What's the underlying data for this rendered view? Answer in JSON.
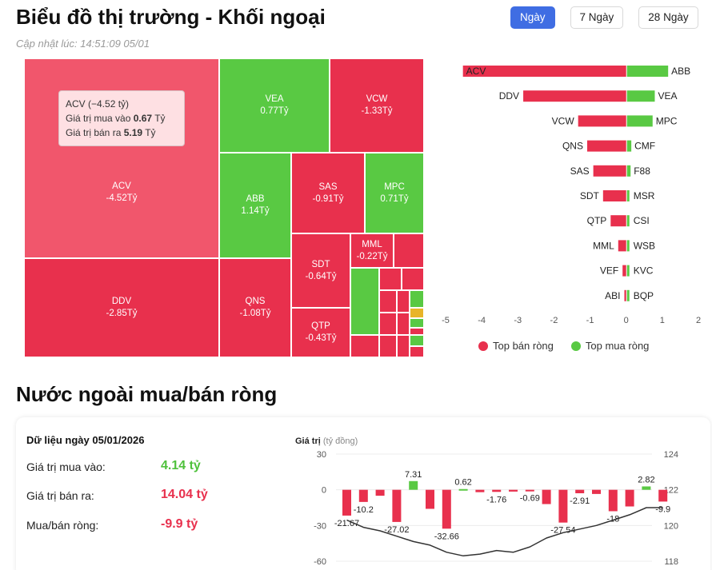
{
  "header": {
    "title": "Biểu đồ thị trường - Khối ngoại",
    "updated": "Cập nhật lúc: 14:51:09 05/01",
    "tabs": [
      "Ngày",
      "7 Ngày",
      "28 Ngày"
    ],
    "active_tab": "Ngày"
  },
  "treemap": {
    "tiles": [
      {
        "code": "ACV",
        "value": "-4.52Tỷ"
      },
      {
        "code": "DDV",
        "value": "-2.85Tỷ"
      },
      {
        "code": "VEA",
        "value": "0.77Tỷ"
      },
      {
        "code": "VCW",
        "value": "-1.33Tỷ"
      },
      {
        "code": "ABB",
        "value": "1.14Tỷ"
      },
      {
        "code": "SAS",
        "value": "-0.91Tỷ"
      },
      {
        "code": "MPC",
        "value": "0.71Tỷ"
      },
      {
        "code": "QNS",
        "value": "-1.08Tỷ"
      },
      {
        "code": "SDT",
        "value": "-0.64Tỷ"
      },
      {
        "code": "MML",
        "value": "-0.22Tỷ"
      },
      {
        "code": "QTP",
        "value": "-0.43Tỷ"
      }
    ],
    "tooltip": {
      "title": "ACV (−4.52 tỷ)",
      "buy_label": "Giá trị mua vào",
      "buy_value": "0.67",
      "buy_unit": "Tỷ",
      "sell_label": "Giá trị bán ra",
      "sell_value": "5.19",
      "sell_unit": "Tỷ"
    }
  },
  "legend": {
    "sell": "Top bán ròng",
    "buy": "Top mua ròng",
    "sell_color": "#e8304d",
    "buy_color": "#59c943"
  },
  "section": {
    "title": "Nước ngoài mua/bán ròng",
    "card_title": "Dữ liệu ngày 05/01/2026",
    "buy_label": "Giá trị mua vào:",
    "buy_value": "4.14 tỷ",
    "sell_label": "Giá trị bán ra:",
    "sell_value": "14.04 tỷ",
    "net_label": "Mua/bán ròng:",
    "net_value": "-9.9 tỷ"
  },
  "chart_data": [
    {
      "type": "bar",
      "orientation": "horizontal",
      "xlim": [
        -5,
        2
      ],
      "xticks": [
        -5,
        -4,
        -3,
        -2,
        -1,
        0,
        1,
        2
      ],
      "sell_series": {
        "name": "Top bán ròng",
        "categories": [
          "ACV",
          "DDV",
          "VCW",
          "QNS",
          "SAS",
          "SDT",
          "QTP",
          "MML",
          "VEF",
          "ABI"
        ],
        "values": [
          -4.52,
          -2.85,
          -1.33,
          -1.08,
          -0.91,
          -0.64,
          -0.43,
          -0.22,
          -0.1,
          -0.05
        ]
      },
      "buy_series": {
        "name": "Top mua ròng",
        "categories": [
          "ABB",
          "VEA",
          "MPC",
          "CMF",
          "F88",
          "MSR",
          "CSI",
          "WSB",
          "KVC",
          "BQP"
        ],
        "values": [
          1.14,
          0.77,
          0.71,
          0.12,
          0.1,
          0.06,
          0.04,
          0.03,
          0.02,
          0.01
        ]
      }
    },
    {
      "type": "bar",
      "ylabel": "Giá trị",
      "ylabel_unit": "(tỷ đồng)",
      "ylim": [
        -60,
        30
      ],
      "yticks": [
        30,
        0,
        -30,
        -60
      ],
      "y2lim": [
        118,
        124
      ],
      "y2ticks": [
        124,
        122,
        120,
        118
      ],
      "values": [
        -21.67,
        -10.2,
        -5.0,
        -27.02,
        7.31,
        -16.0,
        -32.66,
        0.62,
        -2.0,
        -1.76,
        -1.5,
        -0.69,
        -12.0,
        -27.54,
        -2.91,
        -3.5,
        -18.0,
        -14.0,
        2.82,
        -9.9
      ],
      "labels": {
        "0": "-21.67",
        "1": "-10.2",
        "3": "-27.02",
        "4": "7.31",
        "6": "-32.66",
        "7": "0.62",
        "9": "-1.76",
        "11": "-0.69",
        "13": "-27.54",
        "14": "-2.91",
        "16": "-18",
        "18": "2.82",
        "19": "-9.9"
      },
      "line": [
        120.3,
        119.9,
        119.7,
        119.4,
        119.1,
        118.9,
        118.5,
        118.3,
        118.4,
        118.6,
        118.5,
        118.8,
        119.3,
        119.6,
        119.8,
        120.0,
        120.3,
        120.6,
        121.0,
        121.0
      ]
    }
  ]
}
